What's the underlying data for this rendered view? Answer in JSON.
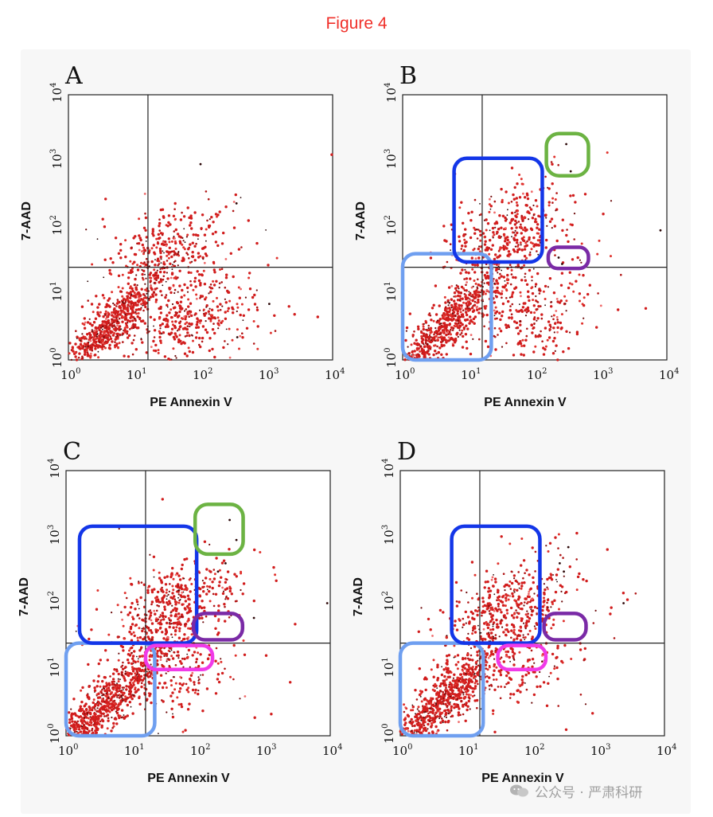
{
  "figure_title": "Figure 4",
  "watermark": "公众号 · 严肃科研",
  "colors": {
    "title": "#f0302a",
    "dots": [
      "#d11d1d",
      "#e0322d",
      "#b01515",
      "#6e0b0b",
      "#2a0505",
      "#ef6a6a"
    ],
    "gate_light_blue": "#6f9ff0",
    "gate_blue": "#1336e8",
    "gate_green": "#6cb343",
    "gate_purple": "#7a2aa6",
    "gate_magenta": "#f03ae8"
  },
  "chart_data": [
    {
      "type": "scatter",
      "panel": "A",
      "xlabel": "PE Annexin V",
      "ylabel": "7-AAD",
      "xscale": "log",
      "yscale": "log",
      "xlim": [
        1,
        10000
      ],
      "ylim": [
        1,
        10000
      ],
      "x_ticks": [
        {
          "base": "10",
          "exp": "0"
        },
        {
          "base": "10",
          "exp": "1"
        },
        {
          "base": "10",
          "exp": "2"
        },
        {
          "base": "10",
          "exp": "3"
        },
        {
          "base": "10",
          "exp": "4"
        }
      ],
      "y_ticks": [
        {
          "base": "10",
          "exp": "0"
        },
        {
          "base": "10",
          "exp": "1"
        },
        {
          "base": "10",
          "exp": "2"
        },
        {
          "base": "10",
          "exp": "3"
        },
        {
          "base": "10",
          "exp": "4"
        }
      ],
      "quadrant": {
        "x": 16,
        "y": 25
      },
      "populations": [
        {
          "name": "viable",
          "center": [
            4,
            3
          ],
          "spread": [
            0.45,
            0.45
          ],
          "corr": 0.9,
          "count": 700
        },
        {
          "name": "early_apoptotic",
          "center": [
            70,
            4
          ],
          "spread": [
            0.5,
            0.35
          ],
          "corr": 0.2,
          "count": 360
        },
        {
          "name": "late_apoptotic",
          "center": [
            30,
            45
          ],
          "spread": [
            0.45,
            0.35
          ],
          "corr": 0.5,
          "count": 280
        },
        {
          "name": "scattered",
          "center": [
            40,
            20
          ],
          "spread": [
            0.8,
            0.7
          ],
          "corr": 0.1,
          "count": 90
        }
      ],
      "outliers": [
        [
          350,
          230
        ],
        [
          100,
          900
        ],
        [
          1100,
          7
        ],
        [
          360,
          2.2
        ]
      ],
      "gates": []
    },
    {
      "type": "scatter",
      "panel": "B",
      "xlabel": "PE Annexin V",
      "ylabel": "7-AAD",
      "xscale": "log",
      "yscale": "log",
      "xlim": [
        1,
        10000
      ],
      "ylim": [
        1,
        10000
      ],
      "x_ticks": [
        {
          "base": "10",
          "exp": "0"
        },
        {
          "base": "10",
          "exp": "1"
        },
        {
          "base": "10",
          "exp": "2"
        },
        {
          "base": "10",
          "exp": "3"
        },
        {
          "base": "10",
          "exp": "4"
        }
      ],
      "y_ticks": [
        {
          "base": "10",
          "exp": "0"
        },
        {
          "base": "10",
          "exp": "1"
        },
        {
          "base": "10",
          "exp": "2"
        },
        {
          "base": "10",
          "exp": "3"
        },
        {
          "base": "10",
          "exp": "4"
        }
      ],
      "quadrant": {
        "x": 16,
        "y": 25
      },
      "populations": [
        {
          "name": "viable",
          "center": [
            4,
            3
          ],
          "spread": [
            0.45,
            0.45
          ],
          "corr": 0.9,
          "count": 700
        },
        {
          "name": "late_apoptotic",
          "center": [
            40,
            80
          ],
          "spread": [
            0.45,
            0.4
          ],
          "corr": 0.5,
          "count": 380
        },
        {
          "name": "early_apoptotic",
          "center": [
            80,
            5
          ],
          "spread": [
            0.45,
            0.35
          ],
          "corr": 0.2,
          "count": 230
        },
        {
          "name": "scattered",
          "center": [
            60,
            20
          ],
          "spread": [
            0.8,
            0.7
          ],
          "corr": 0.1,
          "count": 90
        }
      ],
      "outliers": [
        [
          300,
          1800
        ],
        [
          350,
          700
        ],
        [
          8000,
          90
        ],
        [
          230,
          35
        ],
        [
          260,
          28
        ]
      ],
      "gates": [
        {
          "color": "gate_light_blue",
          "x": [
            1,
            22
          ],
          "y": [
            1,
            40
          ]
        },
        {
          "color": "gate_blue",
          "x": [
            6,
            130
          ],
          "y": [
            30,
            1100
          ]
        },
        {
          "color": "gate_green",
          "x": [
            150,
            650
          ],
          "y": [
            600,
            2600
          ]
        },
        {
          "color": "gate_purple",
          "x": [
            160,
            650
          ],
          "y": [
            24,
            50
          ]
        }
      ]
    },
    {
      "type": "scatter",
      "panel": "C",
      "xlabel": "PE Annexin V",
      "ylabel": "7-AAD",
      "xscale": "log",
      "yscale": "log",
      "xlim": [
        1,
        10000
      ],
      "ylim": [
        1,
        10000
      ],
      "x_ticks": [
        {
          "base": "10",
          "exp": "0"
        },
        {
          "base": "10",
          "exp": "1"
        },
        {
          "base": "10",
          "exp": "2"
        },
        {
          "base": "10",
          "exp": "3"
        },
        {
          "base": "10",
          "exp": "4"
        }
      ],
      "y_ticks": [
        {
          "base": "10",
          "exp": "0"
        },
        {
          "base": "10",
          "exp": "1"
        },
        {
          "base": "10",
          "exp": "2"
        },
        {
          "base": "10",
          "exp": "3"
        },
        {
          "base": "10",
          "exp": "4"
        }
      ],
      "quadrant": {
        "x": 16,
        "y": 25
      },
      "populations": [
        {
          "name": "viable",
          "center": [
            4,
            3
          ],
          "spread": [
            0.5,
            0.5
          ],
          "corr": 0.9,
          "count": 850
        },
        {
          "name": "late_apoptotic",
          "center": [
            40,
            80
          ],
          "spread": [
            0.45,
            0.4
          ],
          "corr": 0.5,
          "count": 450
        },
        {
          "name": "early_apoptotic",
          "center": [
            60,
            9
          ],
          "spread": [
            0.35,
            0.3
          ],
          "corr": 0.3,
          "count": 120
        },
        {
          "name": "scattered",
          "center": [
            60,
            25
          ],
          "spread": [
            0.8,
            0.7
          ],
          "corr": 0.1,
          "count": 80
        }
      ],
      "outliers": [
        [
          300,
          1800
        ],
        [
          380,
          900
        ],
        [
          260,
          400
        ],
        [
          700,
          60
        ],
        [
          9000,
          100
        ],
        [
          200,
          300
        ]
      ],
      "gates": [
        {
          "color": "gate_light_blue",
          "x": [
            1,
            22
          ],
          "y": [
            1,
            25
          ]
        },
        {
          "color": "gate_blue",
          "x": [
            1.6,
            95
          ],
          "y": [
            25,
            1450
          ]
        },
        {
          "color": "gate_green",
          "x": [
            90,
            480
          ],
          "y": [
            550,
            3100
          ]
        },
        {
          "color": "gate_purple",
          "x": [
            85,
            470
          ],
          "y": [
            28,
            70
          ]
        },
        {
          "color": "gate_magenta",
          "x": [
            16,
            165
          ],
          "y": [
            10,
            23
          ]
        }
      ]
    },
    {
      "type": "scatter",
      "panel": "D",
      "xlabel": "PE Annexin V",
      "ylabel": "7-AAD",
      "xscale": "log",
      "yscale": "log",
      "xlim": [
        1,
        10000
      ],
      "ylim": [
        1,
        10000
      ],
      "x_ticks": [
        {
          "base": "10",
          "exp": "0"
        },
        {
          "base": "10",
          "exp": "1"
        },
        {
          "base": "10",
          "exp": "2"
        },
        {
          "base": "10",
          "exp": "3"
        },
        {
          "base": "10",
          "exp": "4"
        }
      ],
      "y_ticks": [
        {
          "base": "10",
          "exp": "0"
        },
        {
          "base": "10",
          "exp": "1"
        },
        {
          "base": "10",
          "exp": "2"
        },
        {
          "base": "10",
          "exp": "3"
        },
        {
          "base": "10",
          "exp": "4"
        }
      ],
      "quadrant": {
        "x": 16,
        "y": 25
      },
      "populations": [
        {
          "name": "viable",
          "center": [
            4,
            3
          ],
          "spread": [
            0.5,
            0.5
          ],
          "corr": 0.9,
          "count": 800
        },
        {
          "name": "late_apoptotic",
          "center": [
            40,
            80
          ],
          "spread": [
            0.45,
            0.4
          ],
          "corr": 0.5,
          "count": 420
        },
        {
          "name": "early_apoptotic",
          "center": [
            70,
            9
          ],
          "spread": [
            0.35,
            0.3
          ],
          "corr": 0.3,
          "count": 120
        },
        {
          "name": "scattered",
          "center": [
            60,
            25
          ],
          "spread": [
            0.8,
            0.7
          ],
          "corr": 0.1,
          "count": 80
        }
      ],
      "outliers": [
        [
          2400,
          100
        ],
        [
          350,
          700
        ],
        [
          260,
          400
        ],
        [
          300,
          300
        ]
      ],
      "gates": [
        {
          "color": "gate_light_blue",
          "x": [
            1,
            18
          ],
          "y": [
            1,
            25
          ]
        },
        {
          "color": "gate_blue",
          "x": [
            6,
            130
          ],
          "y": [
            25,
            1450
          ]
        },
        {
          "color": "gate_purple",
          "x": [
            150,
            650
          ],
          "y": [
            28,
            70
          ]
        },
        {
          "color": "gate_magenta",
          "x": [
            30,
            160
          ],
          "y": [
            10,
            23
          ]
        }
      ]
    }
  ]
}
